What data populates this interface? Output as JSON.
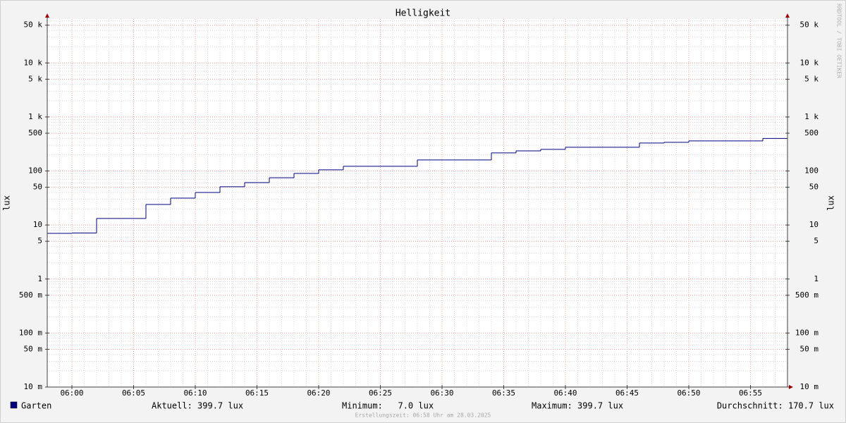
{
  "chart_data": {
    "type": "line",
    "step": true,
    "title": "Helligkeit",
    "y_label": "lux",
    "side_text": "RRDTOOL / TOBI OETIKER",
    "footer": "Erstellungszeit: 06:58 Uhr am 28.03.2025",
    "log_scale": true,
    "grid": true,
    "xlim": [
      "05:58",
      "06:58"
    ],
    "xticks": [
      "06:00",
      "06:05",
      "06:10",
      "06:15",
      "06:20",
      "06:25",
      "06:30",
      "06:35",
      "06:40",
      "06:45",
      "06:50",
      "06:55"
    ],
    "ylim": [
      0.01,
      65000
    ],
    "yticks": [
      {
        "value": 0.01,
        "label": "10 m"
      },
      {
        "value": 0.05,
        "label": "50 m"
      },
      {
        "value": 0.1,
        "label": "100 m"
      },
      {
        "value": 0.5,
        "label": "500 m"
      },
      1,
      5,
      10,
      50,
      100,
      500,
      {
        "value": 1000,
        "label": "1 k"
      },
      {
        "value": 5000,
        "label": "5 k"
      },
      {
        "value": 10000,
        "label": "10 k"
      },
      {
        "value": 50000,
        "label": "50 k"
      }
    ],
    "x": [
      "05:58",
      "06:00",
      "06:02",
      "06:06",
      "06:08",
      "06:10",
      "06:12",
      "06:14",
      "06:16",
      "06:18",
      "06:20",
      "06:22",
      "06:28",
      "06:34",
      "06:36",
      "06:38",
      "06:40",
      "06:46",
      "06:48",
      "06:50",
      "06:56"
    ],
    "series": [
      {
        "name": "Garten",
        "color": "#000080",
        "values": [
          7.0,
          7.1,
          13.2,
          24,
          31.5,
          40,
          51,
          61,
          75,
          90,
          105,
          122,
          160,
          216,
          236,
          251,
          275,
          329,
          339,
          360,
          399.7
        ]
      }
    ],
    "legend_stats": [
      "Aktuell: 399.7 lux",
      "Minimum:   7.0 lux",
      "Maximum: 399.7 lux",
      "Durchschnitt: 170.7 lux"
    ]
  }
}
